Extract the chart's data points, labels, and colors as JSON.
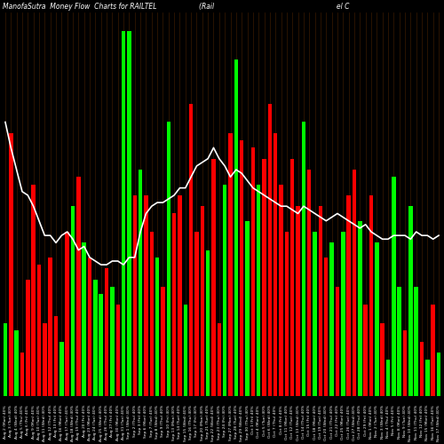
{
  "title": "ManofaSutra  Money Flow  Charts for RAILTEL                    (Rail                                                          el C",
  "background_color": "#000000",
  "bar_width": 0.7,
  "line_color": "#ffffff",
  "green_color": "#00ff00",
  "red_color": "#ff0000",
  "grid_color": "#3a1a00",
  "values": [
    20,
    72,
    18,
    12,
    32,
    58,
    36,
    20,
    38,
    22,
    15,
    45,
    52,
    60,
    42,
    38,
    32,
    28,
    35,
    30,
    25,
    100,
    100,
    55,
    62,
    55,
    45,
    38,
    30,
    75,
    50,
    55,
    25,
    80,
    45,
    52,
    40,
    65,
    20,
    58,
    72,
    92,
    70,
    48,
    68,
    58,
    65,
    80,
    72,
    58,
    45,
    65,
    52,
    75,
    62,
    45,
    52,
    38,
    42,
    30,
    45,
    55,
    62,
    48,
    25,
    55,
    42,
    20,
    10,
    60,
    30,
    18,
    52,
    30,
    15,
    10,
    25,
    12
  ],
  "colors": [
    "G",
    "R",
    "G",
    "R",
    "R",
    "R",
    "R",
    "R",
    "R",
    "R",
    "G",
    "R",
    "G",
    "R",
    "G",
    "R",
    "G",
    "G",
    "R",
    "G",
    "R",
    "G",
    "G",
    "R",
    "G",
    "R",
    "R",
    "G",
    "R",
    "G",
    "R",
    "R",
    "G",
    "R",
    "R",
    "R",
    "G",
    "R",
    "R",
    "G",
    "R",
    "G",
    "R",
    "G",
    "R",
    "G",
    "R",
    "R",
    "R",
    "R",
    "R",
    "R",
    "R",
    "G",
    "R",
    "G",
    "R",
    "R",
    "G",
    "R",
    "G",
    "R",
    "R",
    "G",
    "R",
    "R",
    "G",
    "R",
    "G",
    "G",
    "G",
    "R",
    "G",
    "G",
    "R",
    "G",
    "R",
    "G"
  ],
  "line_values": [
    75,
    68,
    62,
    56,
    55,
    52,
    48,
    44,
    44,
    42,
    44,
    45,
    43,
    40,
    41,
    38,
    37,
    36,
    36,
    37,
    37,
    36,
    38,
    38,
    45,
    50,
    52,
    53,
    53,
    54,
    55,
    57,
    57,
    60,
    63,
    64,
    65,
    68,
    65,
    63,
    60,
    62,
    61,
    59,
    57,
    56,
    55,
    54,
    53,
    52,
    52,
    51,
    50,
    52,
    51,
    50,
    49,
    48,
    49,
    50,
    49,
    48,
    47,
    46,
    47,
    45,
    44,
    43,
    43,
    44,
    44,
    44,
    43,
    45,
    44,
    44,
    43,
    44
  ],
  "x_labels": [
    "Aug 2 (Mon) 40%",
    "Aug 3 (Tue) 40%",
    "Aug 4 (Wed) 40%",
    "Aug 5 (Thu) 40%",
    "Aug 6 (Fri) 40%",
    "Aug 9 (Mon) 40%",
    "Aug 10 (Tue) 40%",
    "Aug 11 (Wed) 40%",
    "Aug 12 (Thu) 40%",
    "Aug 13 (Fri) 40%",
    "Aug 16 (Mon) 40%",
    "Aug 17 (Tue) 40%",
    "Aug 18 (Wed) 40%",
    "Aug 19 (Thu) 40%",
    "Aug 20 (Fri) 40%",
    "Aug 23 (Mon) 40%",
    "Aug 24 (Tue) 40%",
    "Aug 25 (Wed) 40%",
    "Aug 26 (Thu) 40%",
    "Aug 27 (Fri) 40%",
    "Aug 30 (Mon) 40%",
    "Aug 31 (Tue) 40%",
    "Sep 1 (Wed) 40%",
    "Sep 2 (Thu) 40%",
    "Sep 3 (Fri) 40%",
    "Sep 6 (Mon) 40%",
    "Sep 7 (Tue) 40%",
    "Sep 8 (Wed) 40%",
    "Sep 9 (Thu) 40%",
    "Sep 10 (Fri) 40%",
    "Sep 13 (Mon) 40%",
    "Sep 14 (Tue) 40%",
    "Sep 15 (Wed) 40%",
    "Sep 16 (Thu) 40%",
    "Sep 17 (Fri) 40%",
    "Sep 20 (Mon) 40%",
    "Sep 21 (Tue) 40%",
    "Sep 22 (Wed) 40%",
    "Sep 23 (Thu) 40%",
    "Sep 24 (Fri) 40%",
    "Sep 27 (Mon) 40%",
    "Sep 28 (Tue) 40%",
    "Sep 29 (Wed) 40%",
    "Sep 30 (Thu) 40%",
    "Oct 1 (Fri) 40%",
    "Oct 4 (Mon) 40%",
    "Oct 5 (Tue) 40%",
    "Oct 6 (Wed) 40%",
    "Oct 7 (Thu) 40%",
    "Oct 8 (Fri) 40%",
    "Oct 11 (Mon) 40%",
    "Oct 12 (Tue) 40%",
    "Oct 13 (Wed) 40%",
    "Oct 14 (Thu) 40%",
    "Oct 15 (Fri) 40%",
    "Oct 18 (Mon) 40%",
    "Oct 19 (Tue) 40%",
    "Oct 20 (Wed) 40%",
    "Oct 21 (Thu) 40%",
    "Oct 22 (Fri) 40%",
    "Oct 25 (Mon) 40%",
    "Oct 26 (Tue) 40%",
    "Oct 27 (Wed) 40%",
    "Oct 28 (Thu) 40%",
    "Oct 29 (Fri) 40%",
    "Nov 1 (Mon) 40%",
    "Nov 2 (Tue) 40%",
    "Nov 3 (Wed) 40%",
    "Nov 4 (Thu) 40%",
    "Nov 5 (Fri) 40%",
    "Nov 8 (Mon) 40%",
    "Nov 9 (Tue) 40%",
    "Nov 10 (Wed) 40%",
    "Nov 11 (Thu) 40%",
    "Nov 12 (Fri) 40%",
    "Nov 15 (Mon) 40%",
    "Nov 16 (Tue) 40%",
    "Nov 17 (Wed) 40%"
  ]
}
